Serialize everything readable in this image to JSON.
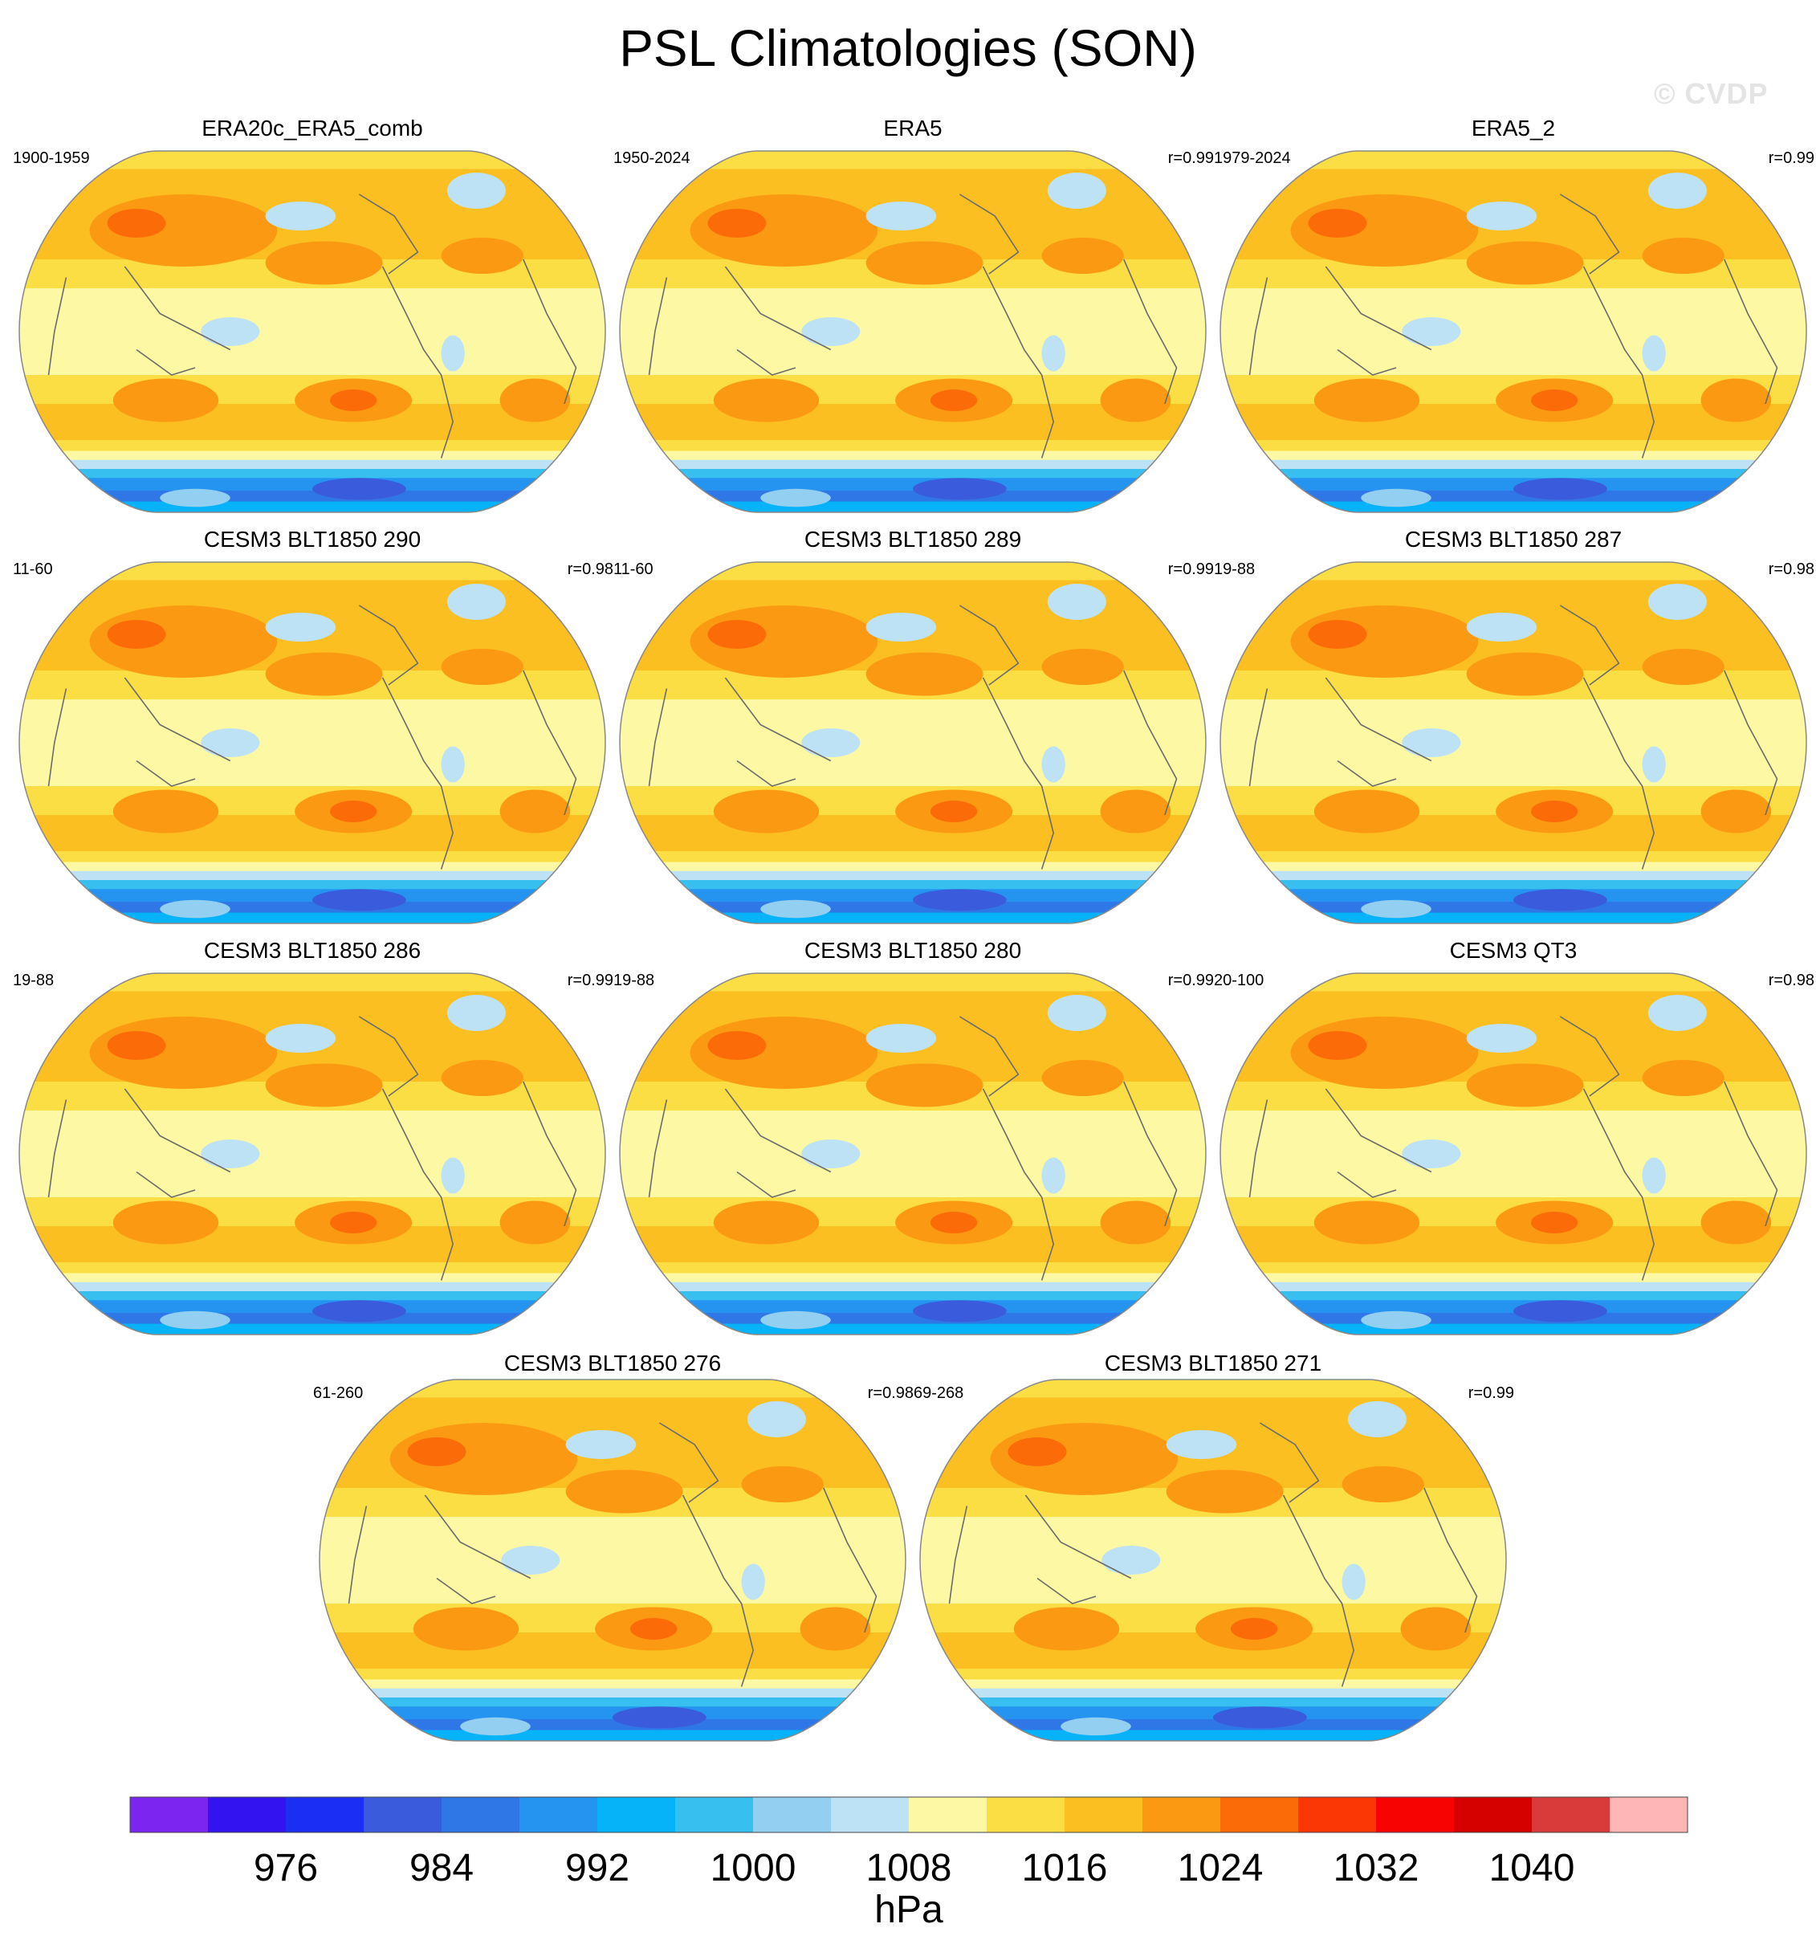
{
  "figure": {
    "title": "PSL Climatologies (SON)",
    "watermark": "© CVDP"
  },
  "chart_data": {
    "type": "heatmap",
    "title": "PSL Climatologies (SON)",
    "projection": "Robinson, Pacific-centered global map",
    "panels": [
      {
        "title": "ERA20c_ERA5_comb",
        "years": "1900-1959",
        "r": ""
      },
      {
        "title": "ERA5",
        "years": "1950-2024",
        "r": "r=0.99"
      },
      {
        "title": "ERA5_2",
        "years": "1979-2024",
        "r": "r=0.99"
      },
      {
        "title": "CESM3 BLT1850 290",
        "years": "11-60",
        "r": "r=0.98"
      },
      {
        "title": "CESM3 BLT1850 289",
        "years": "11-60",
        "r": "r=0.99"
      },
      {
        "title": "CESM3 BLT1850 287",
        "years": "19-88",
        "r": "r=0.98"
      },
      {
        "title": "CESM3 BLT1850 286",
        "years": "19-88",
        "r": "r=0.99"
      },
      {
        "title": "CESM3 BLT1850 280",
        "years": "19-88",
        "r": "r=0.99"
      },
      {
        "title": "CESM3 QT3",
        "years": "20-100",
        "r": "r=0.98"
      },
      {
        "title": "CESM3 BLT1850 276",
        "years": "61-260",
        "r": "r=0.98"
      },
      {
        "title": "CESM3 BLT1850 271",
        "years": "69-268",
        "r": "r=0.99"
      }
    ],
    "colorbar": {
      "unit": "hPa",
      "levels": [
        972,
        976,
        980,
        984,
        988,
        992,
        996,
        1000,
        1004,
        1008,
        1012,
        1016,
        1020,
        1024,
        1028,
        1032,
        1036,
        1040,
        1044
      ],
      "tick_labels": [
        "976",
        "984",
        "992",
        "1000",
        "1008",
        "1016",
        "1024",
        "1032",
        "1040"
      ],
      "tick_values": [
        976,
        984,
        992,
        1000,
        1008,
        1016,
        1024,
        1032,
        1040
      ],
      "colors": [
        "#7c25f0",
        "#3314f0",
        "#1a2ff3",
        "#3a5bdc",
        "#2f76e6",
        "#2593f0",
        "#06b3f8",
        "#37bff0",
        "#93cff0",
        "#bde2f5",
        "#fdf8a3",
        "#fbde44",
        "#fbbf22",
        "#fb9a12",
        "#fb6c09",
        "#fb3705",
        "#f70402",
        "#d50000",
        "#d93a3a",
        "#feb6b6"
      ]
    }
  }
}
